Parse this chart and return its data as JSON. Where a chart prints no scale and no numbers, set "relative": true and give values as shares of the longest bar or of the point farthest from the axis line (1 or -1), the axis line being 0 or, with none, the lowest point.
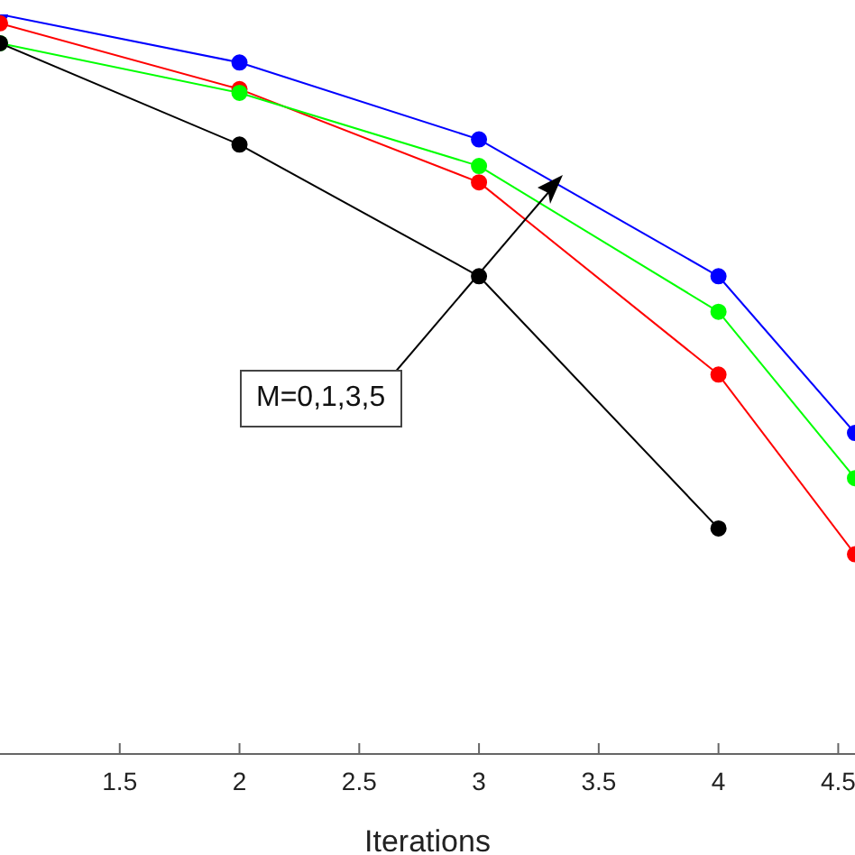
{
  "chart_data": {
    "type": "line",
    "xlabel": "Iterations",
    "relative": true,
    "xlim": [
      1,
      4.57
    ],
    "xticks": [
      1.5,
      2,
      2.5,
      3,
      3.5,
      4,
      4.5
    ],
    "marker": "circle",
    "line_style": "solid",
    "grid": false,
    "annotations": [
      "M=0,1,3,5"
    ],
    "series": [
      {
        "color": "#0000ff",
        "x": [
          1,
          2,
          3,
          4,
          4.57
        ],
        "values": [
          1.0,
          0.935,
          0.831,
          0.646,
          0.434
        ]
      },
      {
        "color": "#ff0000",
        "x": [
          1,
          2,
          3,
          4,
          4.57
        ],
        "values": [
          0.988,
          0.899,
          0.773,
          0.513,
          0.27
        ]
      },
      {
        "color": "#00ff00",
        "x": [
          1,
          2,
          3,
          4,
          4.57
        ],
        "values": [
          0.961,
          0.894,
          0.795,
          0.598,
          0.373
        ]
      },
      {
        "color": "#000000",
        "x": [
          1,
          2,
          3,
          4
        ],
        "values": [
          0.961,
          0.824,
          0.646,
          0.305
        ]
      }
    ]
  }
}
